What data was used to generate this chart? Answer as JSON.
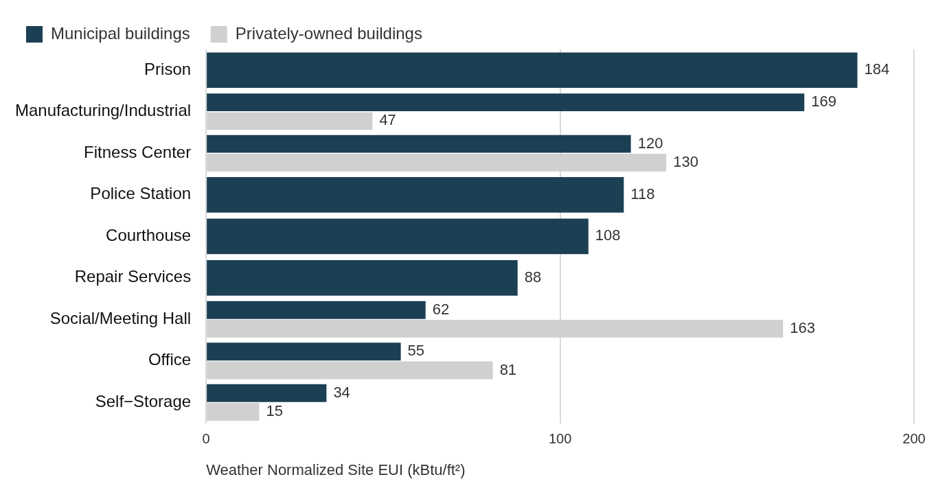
{
  "chart_data": {
    "type": "bar",
    "orientation": "horizontal",
    "xlabel": "Weather Normalized Site EUI (kBtu/ft²)",
    "categories": [
      "Prison",
      "Manufacturing/Industrial",
      "Fitness Center",
      "Police Station",
      "Courthouse",
      "Repair Services",
      "Social/Meeting Hall",
      "Office",
      "Self−Storage"
    ],
    "series": [
      {
        "name": "Municipal buildings",
        "color": "#1b3f53",
        "values": [
          184,
          169,
          120,
          118,
          108,
          88,
          62,
          55,
          34
        ]
      },
      {
        "name": "Privately-owned buildings",
        "color": "#d0d0d0",
        "values": [
          null,
          47,
          130,
          null,
          null,
          null,
          163,
          81,
          15
        ]
      }
    ],
    "xlim": [
      0,
      200
    ],
    "xticks": [
      0,
      100,
      200
    ],
    "grid": "x",
    "legend": "top left",
    "data_labels": true
  }
}
